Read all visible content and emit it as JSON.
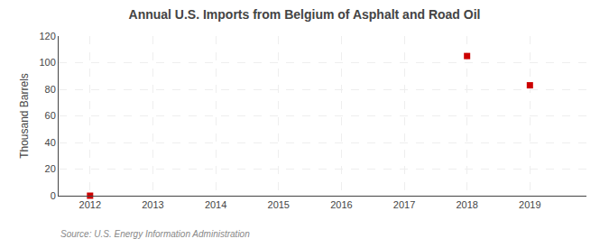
{
  "chart_data": {
    "type": "scatter",
    "title": "Annual U.S. Imports from Belgium of Asphalt and Road Oil",
    "ylabel": "Thousand Barrels",
    "annotations": [
      "Source: U.S. Energy Information Administration"
    ],
    "x": [
      2012,
      2013,
      2014,
      2015,
      2016,
      2017,
      2018,
      2019
    ],
    "values": [
      0,
      null,
      null,
      null,
      null,
      null,
      105,
      83
    ],
    "color": "#cc0000",
    "marker": "square",
    "xlim": [
      2011.5,
      2019.9
    ],
    "xticks": [
      2012,
      2013,
      2014,
      2015,
      2016,
      2017,
      2018,
      2019
    ],
    "ylim": [
      0,
      120
    ],
    "yticks": [
      0,
      20,
      40,
      60,
      80,
      100,
      120
    ],
    "grid": true
  }
}
